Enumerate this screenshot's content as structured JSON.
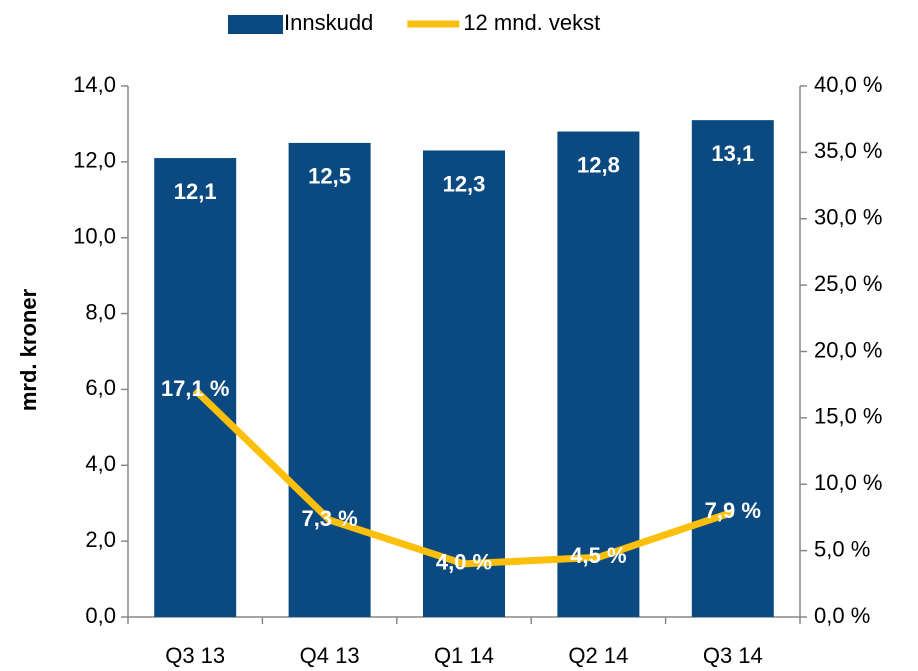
{
  "chart_data": {
    "type": "bar_line",
    "categories": [
      "Q3 13",
      "Q4 13",
      "Q1 14",
      "Q2 14",
      "Q3 14"
    ],
    "y_label": "mrd. kroner",
    "series": [
      {
        "name": "Innskudd",
        "type": "bar",
        "color": "#0b4a80",
        "values": [
          12.1,
          12.5,
          12.3,
          12.8,
          13.1
        ],
        "value_labels": [
          "12,1",
          "12,5",
          "12,3",
          "12,8",
          "13,1"
        ]
      },
      {
        "name": "12 mnd. vekst",
        "type": "line",
        "axis": "y2",
        "color": "#fcbf0a",
        "values": [
          17.1,
          7.3,
          4.0,
          4.5,
          7.9
        ],
        "value_labels": [
          "17,1 %",
          "7,3 %",
          "4,0 %",
          "4,5 %",
          "7,9 %"
        ]
      }
    ],
    "ylim": [
      0,
      14
    ],
    "yticks": [
      {
        "value": 0,
        "label": "0,0"
      },
      {
        "value": 2,
        "label": "2,0"
      },
      {
        "value": 4,
        "label": "4,0"
      },
      {
        "value": 6,
        "label": "6,0"
      },
      {
        "value": 8,
        "label": "8,0"
      },
      {
        "value": 10,
        "label": "10,0"
      },
      {
        "value": 12,
        "label": "12,0"
      },
      {
        "value": 14,
        "label": "14,0"
      }
    ],
    "y2lim": [
      0,
      40
    ],
    "y2ticks": [
      {
        "value": 0,
        "label": "0,0 %"
      },
      {
        "value": 5,
        "label": "5,0 %"
      },
      {
        "value": 10,
        "label": "10,0 %"
      },
      {
        "value": 15,
        "label": "15,0 %"
      },
      {
        "value": 20,
        "label": "20,0 %"
      },
      {
        "value": 25,
        "label": "25,0 %"
      },
      {
        "value": 30,
        "label": "30,0 %"
      },
      {
        "value": 35,
        "label": "35,0 %"
      },
      {
        "value": 40,
        "label": "40,0 %"
      }
    ],
    "grid": false
  }
}
